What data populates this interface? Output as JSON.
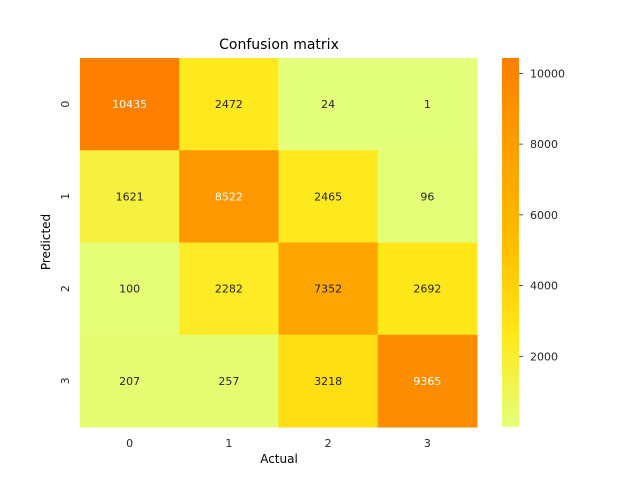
{
  "chart_data": {
    "type": "heatmap",
    "title": "Confusion matrix",
    "xlabel": "Actual",
    "ylabel": "Predicted",
    "x_categories": [
      "0",
      "1",
      "2",
      "3"
    ],
    "y_categories": [
      "0",
      "1",
      "2",
      "3"
    ],
    "values": [
      [
        10435,
        2472,
        24,
        1
      ],
      [
        1621,
        8522,
        2465,
        96
      ],
      [
        100,
        2282,
        7352,
        2692
      ],
      [
        207,
        257,
        3218,
        9365
      ]
    ],
    "colormap": "Wistia",
    "value_range": [
      1,
      10435
    ],
    "colorbar_ticks": [
      2000,
      4000,
      6000,
      8000,
      10000
    ],
    "colors": {
      "low": "#e4ff7a",
      "mid_low": "#ffe81a",
      "mid": "#ffbd00",
      "mid_high": "#ffa000",
      "high": "#fc7f00"
    }
  }
}
